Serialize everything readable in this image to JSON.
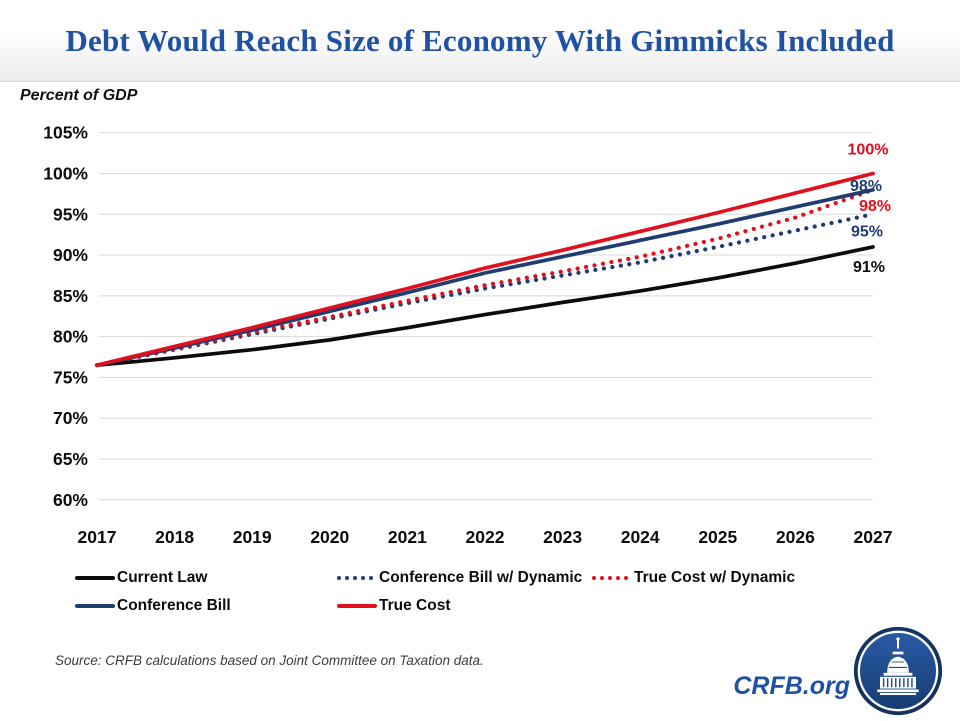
{
  "header": {
    "title": "Debt Would Reach Size of Economy With Gimmicks Included"
  },
  "chart_data": {
    "type": "line",
    "title": "Debt Would Reach Size of Economy With Gimmicks Included",
    "ylabel": "Percent of GDP",
    "x": [
      2017,
      2018,
      2019,
      2020,
      2021,
      2022,
      2023,
      2024,
      2025,
      2026,
      2027
    ],
    "ylim": [
      60,
      105
    ],
    "ytick_step": 5,
    "ytick_format": "percent",
    "grid": true,
    "legend_position": "bottom",
    "series": [
      {
        "name": "Current Law",
        "color": "#0c0c0c",
        "style": "solid",
        "values": [
          76.5,
          77.4,
          78.4,
          79.6,
          81.1,
          82.7,
          84.2,
          85.6,
          87.2,
          89.0,
          91.0
        ],
        "end_label": "91%"
      },
      {
        "name": "Conference Bill",
        "color": "#1f3d73",
        "style": "solid",
        "values": [
          76.5,
          78.6,
          80.8,
          83.1,
          85.4,
          87.8,
          89.8,
          91.8,
          93.8,
          95.9,
          98.0
        ],
        "end_label": "98%"
      },
      {
        "name": "Conference Bill w/ Dynamic",
        "color": "#1f3d73",
        "style": "dotted",
        "values": [
          76.5,
          78.4,
          80.3,
          82.2,
          84.1,
          85.9,
          87.5,
          89.1,
          91.0,
          93.0,
          95.0
        ],
        "end_label": "95%"
      },
      {
        "name": "True Cost",
        "color": "#e0101e",
        "style": "solid",
        "values": [
          76.5,
          78.8,
          81.1,
          83.5,
          85.9,
          88.4,
          90.6,
          92.9,
          95.2,
          97.6,
          100.0
        ],
        "end_label": "100%"
      },
      {
        "name": "True Cost w/ Dynamic",
        "color": "#e0101e",
        "style": "dotted",
        "values": [
          76.5,
          78.5,
          80.5,
          82.4,
          84.4,
          86.3,
          88.0,
          89.8,
          92.0,
          94.6,
          98.0
        ],
        "end_label": "98%"
      }
    ]
  },
  "legend": {
    "rows": [
      [
        0,
        2,
        4
      ],
      [
        1,
        3
      ]
    ]
  },
  "footer": {
    "source": "Source: CRFB calculations based on Joint Committee on Taxation data.",
    "brand": "CRFB.org"
  }
}
